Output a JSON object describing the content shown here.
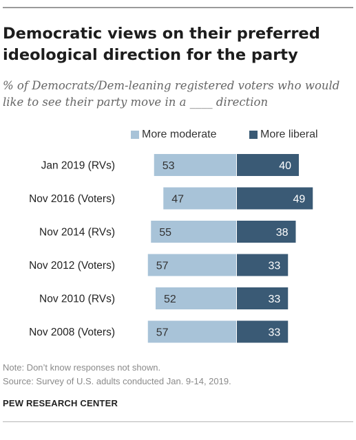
{
  "title": "Democratic views on their preferred ideological direction for the party",
  "subtitle": "% of Democrats/Dem-leaning registered voters who would like to see their party move in a ____ direction",
  "colors": {
    "moderate": "#a8c3d8",
    "liberal": "#3a5a75"
  },
  "chart_data": {
    "type": "bar",
    "orientation": "horizontal-diverging",
    "categories": [
      "Jan 2019 (RVs)",
      "Nov 2016  (Voters)",
      "Nov 2014 (RVs)",
      "Nov 2012 (Voters)",
      "Nov 2010 (RVs)",
      "Nov 2008 (Voters)"
    ],
    "series": [
      {
        "name": "More moderate",
        "values": [
          53,
          47,
          55,
          57,
          52,
          57
        ]
      },
      {
        "name": "More liberal",
        "values": [
          40,
          49,
          38,
          33,
          33,
          33
        ]
      }
    ],
    "legend_position": "top",
    "grid": false
  },
  "note": "Note: Don’t know responses not shown.",
  "source": "Source: Survey of U.S. adults conducted Jan. 9-14, 2019.",
  "brand": "PEW RESEARCH CENTER"
}
